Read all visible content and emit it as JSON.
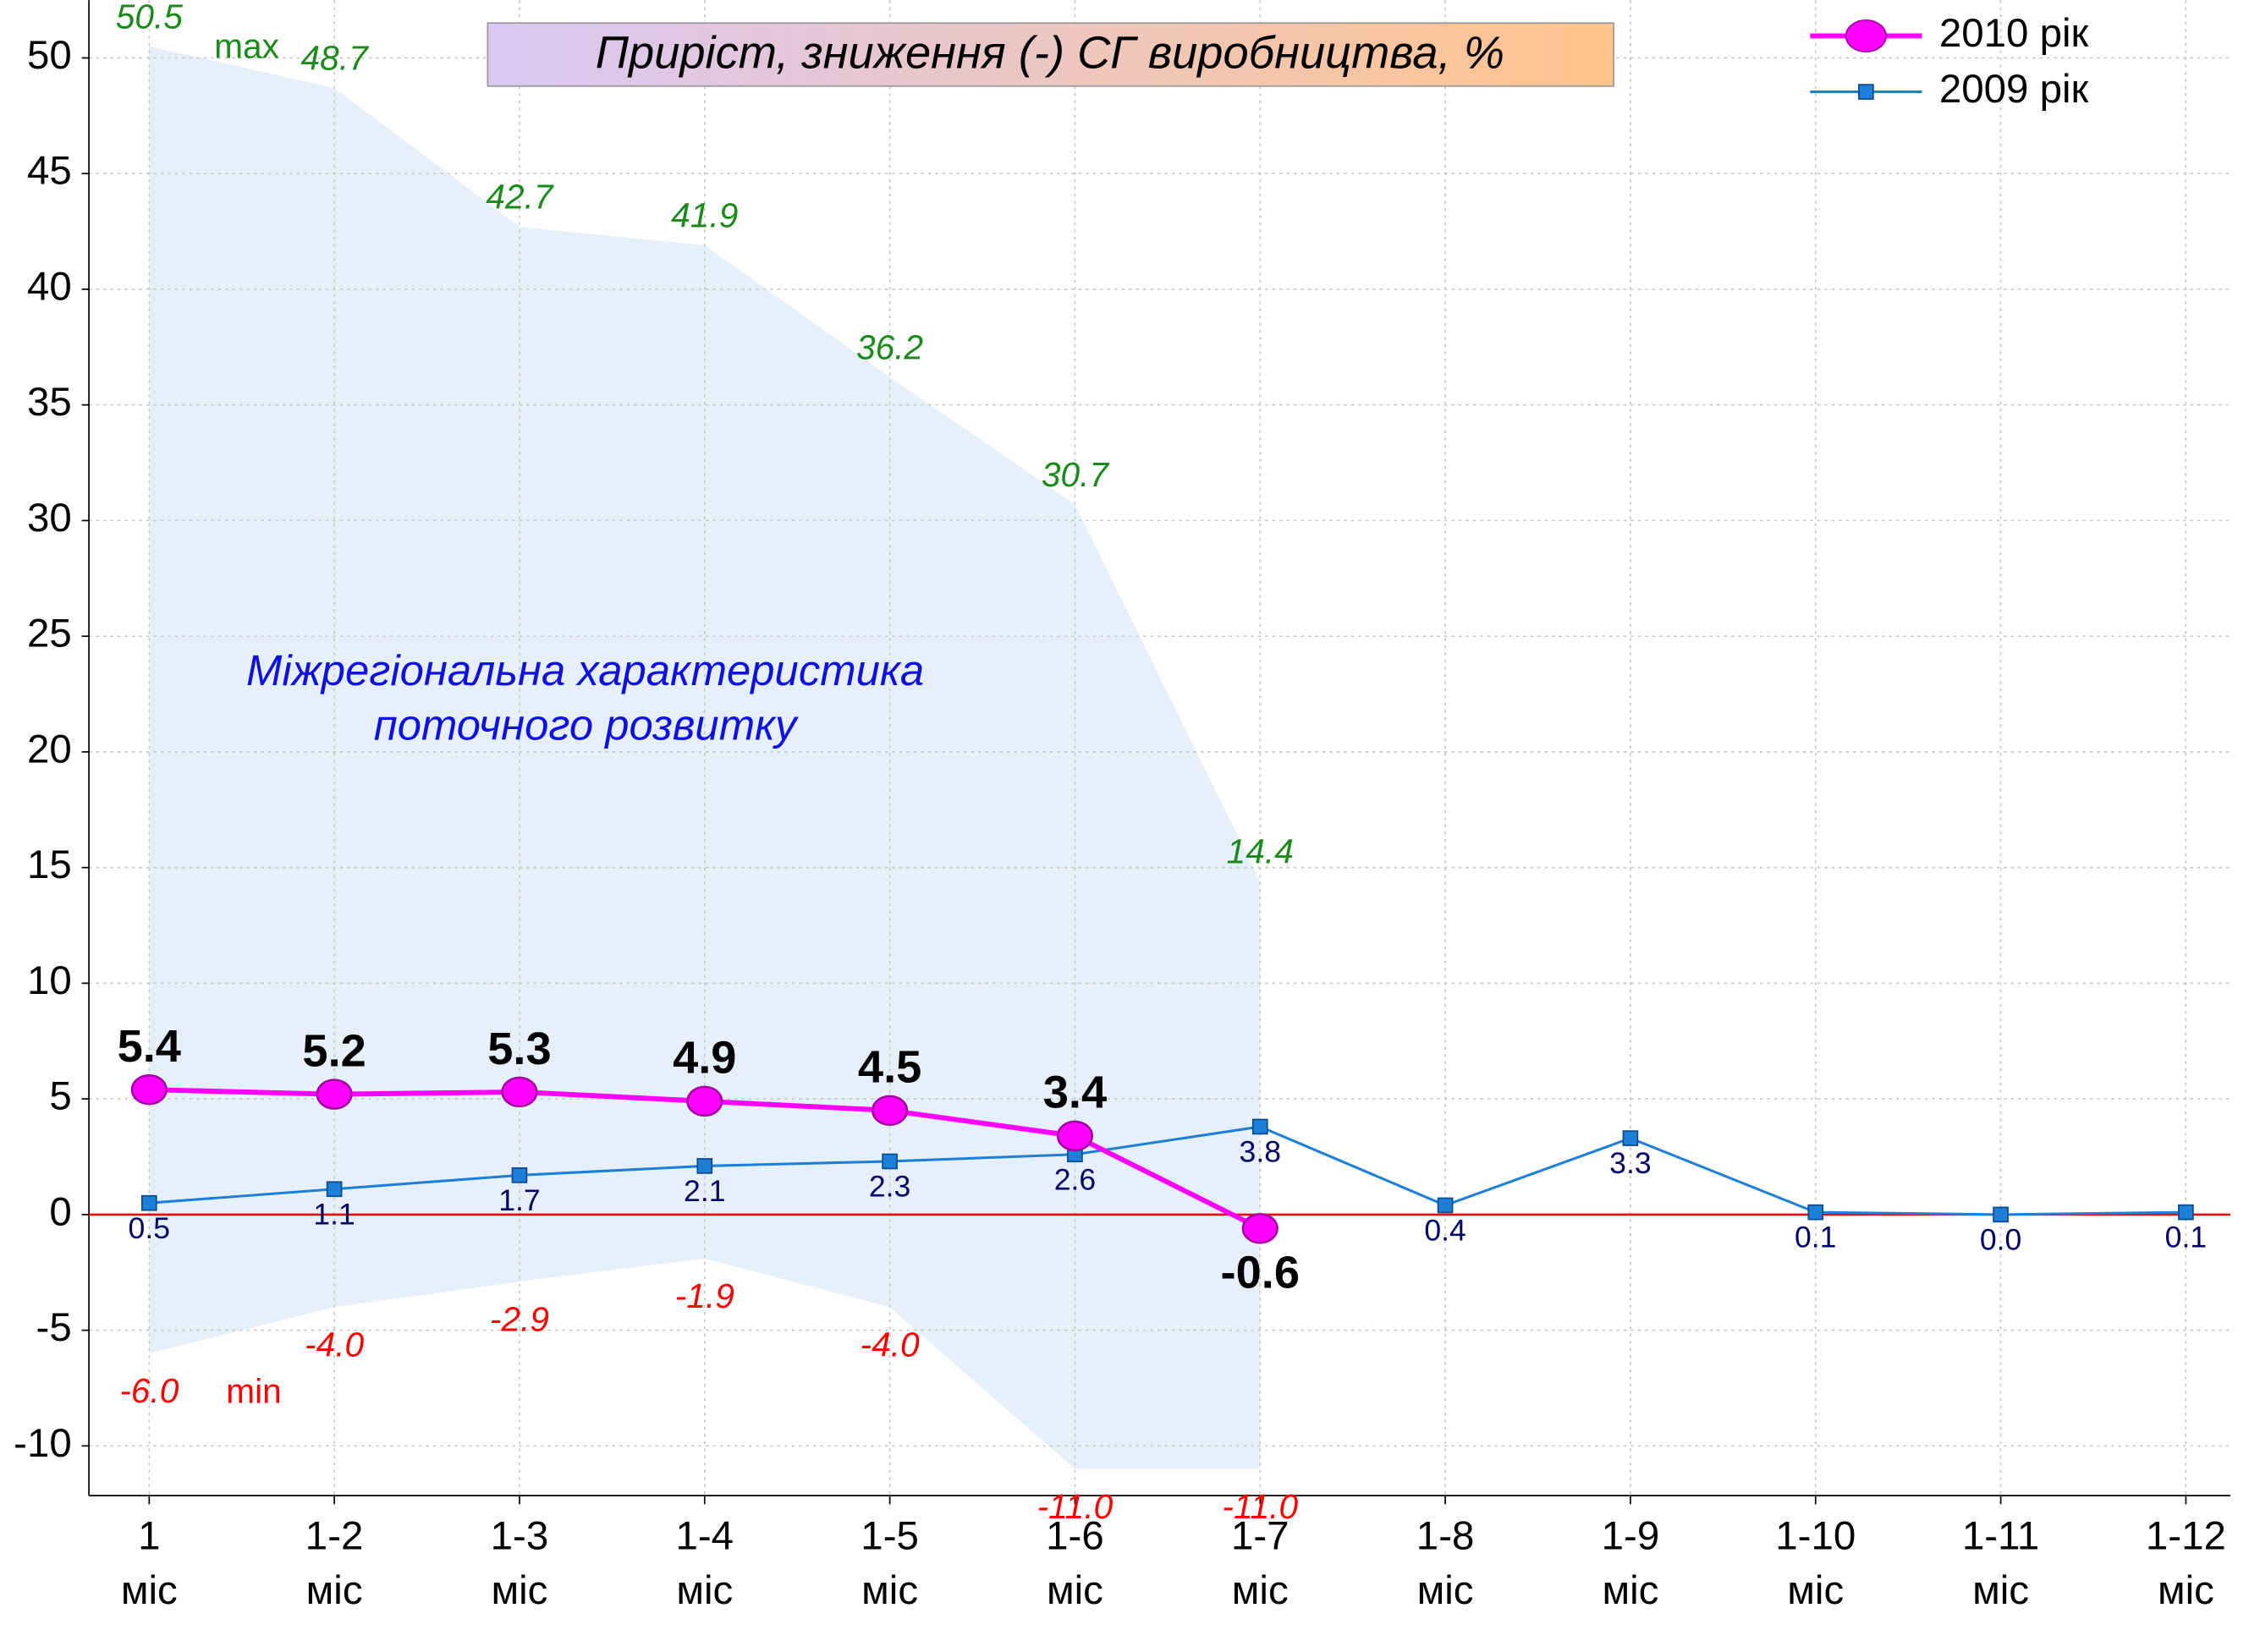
{
  "chart_data": {
    "type": "line",
    "title": "Приріст, зниження (-) СГ виробництва, %",
    "categories": [
      [
        "1",
        "міс"
      ],
      [
        "1-2",
        "міс"
      ],
      [
        "1-3",
        "міс"
      ],
      [
        "1-4",
        "міс"
      ],
      [
        "1-5",
        "міс"
      ],
      [
        "1-6",
        "міс"
      ],
      [
        "1-7",
        "міс"
      ],
      [
        "1-8",
        "міс"
      ],
      [
        "1-9",
        "міс"
      ],
      [
        "1-10",
        "міс"
      ],
      [
        "1-11",
        "міс"
      ],
      [
        "1-12",
        "міс"
      ]
    ],
    "series": [
      {
        "name": "2010 рік",
        "color": "#ff00ff",
        "marker": "circle",
        "values": [
          5.4,
          5.2,
          5.3,
          4.9,
          4.5,
          3.4,
          -0.6,
          null,
          null,
          null,
          null,
          null
        ]
      },
      {
        "name": "2009 рік",
        "color": "#1e7fd8",
        "marker": "square",
        "values": [
          0.5,
          1.1,
          1.7,
          2.1,
          2.3,
          2.6,
          3.8,
          0.4,
          3.3,
          0.1,
          0.0,
          0.1
        ],
        "value_labels": [
          "0.5",
          "1.1",
          "1.7",
          "2.1",
          "2.3",
          "2.6",
          "3.8",
          "0.4",
          "3.3",
          "0.1",
          "0.0",
          "0.1"
        ]
      }
    ],
    "range_band": {
      "color": "#e6f0fb",
      "upper_name": "max",
      "lower_name": "min",
      "upper": [
        50.5,
        48.7,
        42.7,
        41.9,
        36.2,
        30.7,
        14.4
      ],
      "lower": [
        -6.0,
        -4.0,
        -2.9,
        -1.9,
        -4.0,
        -11.0,
        -11.0
      ],
      "lower_labels": [
        "-6.0",
        "-4.0",
        "-2.9",
        "-1.9",
        "-4.0",
        "-11.0",
        "-11.0"
      ],
      "annotation": [
        "Міжрегіональна характеристика",
        "поточного розвитку"
      ]
    },
    "reference_line": {
      "value": 0,
      "color": "#ff0000"
    },
    "ylim": [
      -12.15,
      52.5
    ],
    "yticks": [
      -10,
      -5,
      0,
      5,
      10,
      15,
      20,
      25,
      30,
      35,
      40,
      45,
      50
    ],
    "grid": true,
    "legend": "top-right"
  }
}
